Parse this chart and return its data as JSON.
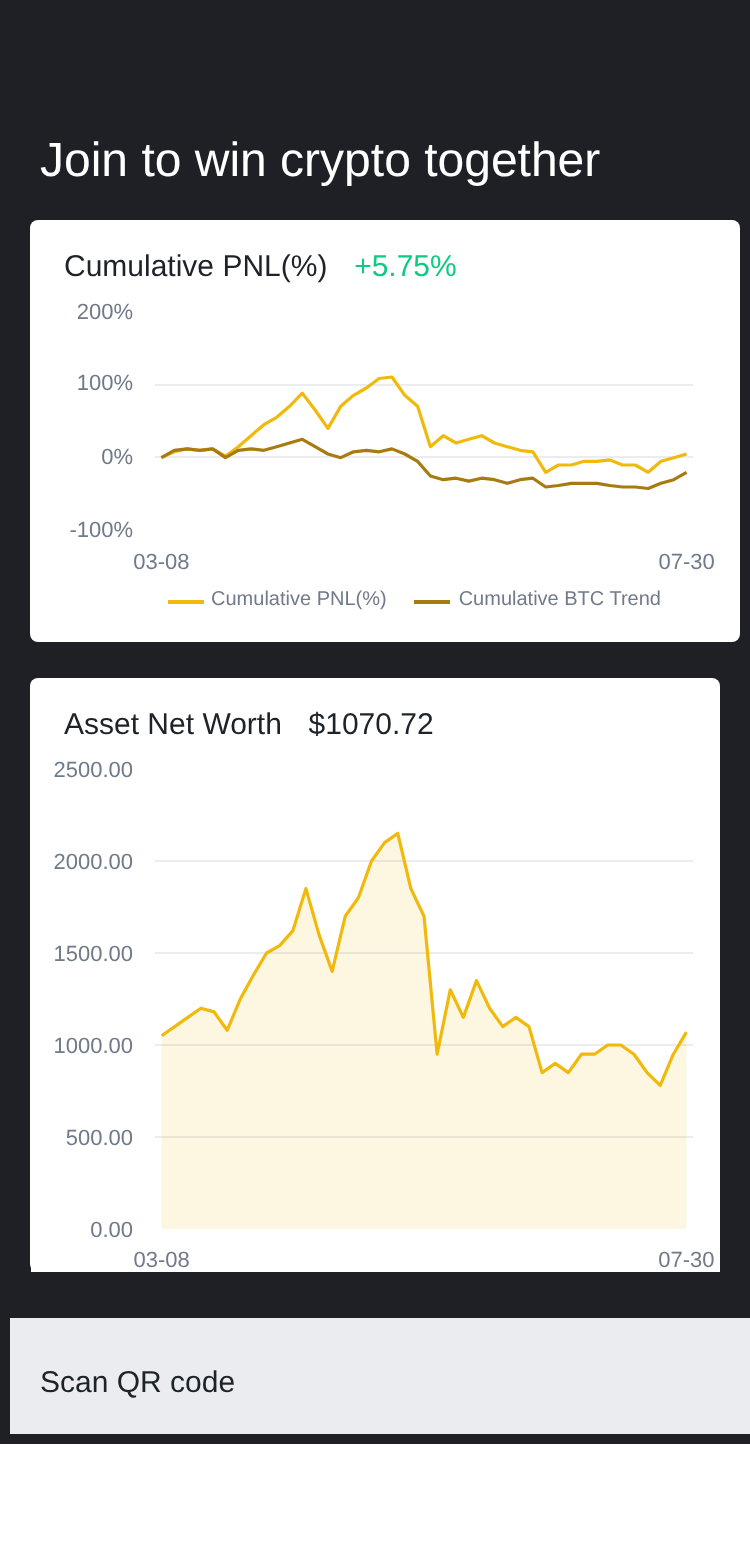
{
  "chart_data": [
    {
      "type": "line",
      "title": "Cumulative PNL(%)",
      "subtitle": "+5.75%",
      "annotations": [
        "Join to win crypto together"
      ],
      "categories": [
        "03-08",
        null,
        null,
        null,
        null,
        null,
        null,
        null,
        null,
        null,
        null,
        null,
        null,
        null,
        null,
        null,
        null,
        null,
        null,
        null,
        null,
        null,
        null,
        null,
        null,
        null,
        null,
        null,
        null,
        null,
        null,
        null,
        null,
        null,
        null,
        null,
        null,
        null,
        null,
        null,
        null,
        "07-30"
      ],
      "series": [
        {
          "name": "Cumulative PNL(%)",
          "color": "#f0b90b",
          "values": [
            0,
            8,
            12,
            10,
            12,
            2,
            15,
            30,
            45,
            55,
            70,
            88,
            65,
            40,
            70,
            85,
            95,
            108,
            110,
            85,
            70,
            15,
            30,
            20,
            25,
            30,
            20,
            15,
            10,
            8,
            -20,
            -10,
            -10,
            -5,
            -5,
            -3,
            -10,
            -10,
            -20,
            -5,
            0,
            5
          ]
        },
        {
          "name": "Cumulative BTC Trend",
          "color": "#a87b12",
          "values": [
            0,
            10,
            12,
            10,
            12,
            0,
            10,
            12,
            10,
            15,
            20,
            25,
            15,
            5,
            0,
            8,
            10,
            8,
            12,
            5,
            -5,
            -25,
            -30,
            -28,
            -32,
            -28,
            -30,
            -35,
            -30,
            -28,
            -40,
            -38,
            -35,
            -35,
            -35,
            -38,
            -40,
            -40,
            -42,
            -35,
            -30,
            -20
          ]
        }
      ],
      "ylim": [
        -100,
        200
      ],
      "yticks": [
        {
          "value": -100,
          "label": "-100%"
        },
        {
          "value": 0,
          "label": "0%"
        },
        {
          "value": 100,
          "label": "100%"
        },
        {
          "value": 200,
          "label": "200%"
        }
      ],
      "grid": "y",
      "legend": "bottom"
    },
    {
      "type": "area",
      "title": "Asset Net Worth",
      "subtitle": "$1070.72",
      "annotations": [
        "Scan QR code"
      ],
      "categories": [
        "03-08",
        null,
        null,
        null,
        null,
        null,
        null,
        null,
        null,
        null,
        null,
        null,
        null,
        null,
        null,
        null,
        null,
        null,
        null,
        null,
        null,
        null,
        null,
        null,
        null,
        null,
        null,
        null,
        null,
        null,
        null,
        null,
        null,
        null,
        null,
        null,
        null,
        null,
        null,
        null,
        "07-30"
      ],
      "values": [
        1050,
        1100,
        1150,
        1200,
        1180,
        1080,
        1250,
        1380,
        1500,
        1540,
        1620,
        1850,
        1600,
        1400,
        1700,
        1800,
        2000,
        2100,
        2150,
        1850,
        1700,
        950,
        1300,
        1150,
        1350,
        1200,
        1100,
        1150,
        1100,
        850,
        900,
        850,
        950,
        950,
        1000,
        1000,
        950,
        850,
        780,
        950,
        1070
      ],
      "color": "#f0b90b",
      "ylim": [
        0,
        2500
      ],
      "yticks": [
        {
          "value": 0,
          "label": "0.00"
        },
        {
          "value": 500,
          "label": "500.00"
        },
        {
          "value": 1000,
          "label": "1000.00"
        },
        {
          "value": 1500,
          "label": "1500.00"
        },
        {
          "value": 2000,
          "label": "2000.00"
        },
        {
          "value": 2500,
          "label": "2500.00"
        }
      ],
      "grid": "y"
    }
  ]
}
